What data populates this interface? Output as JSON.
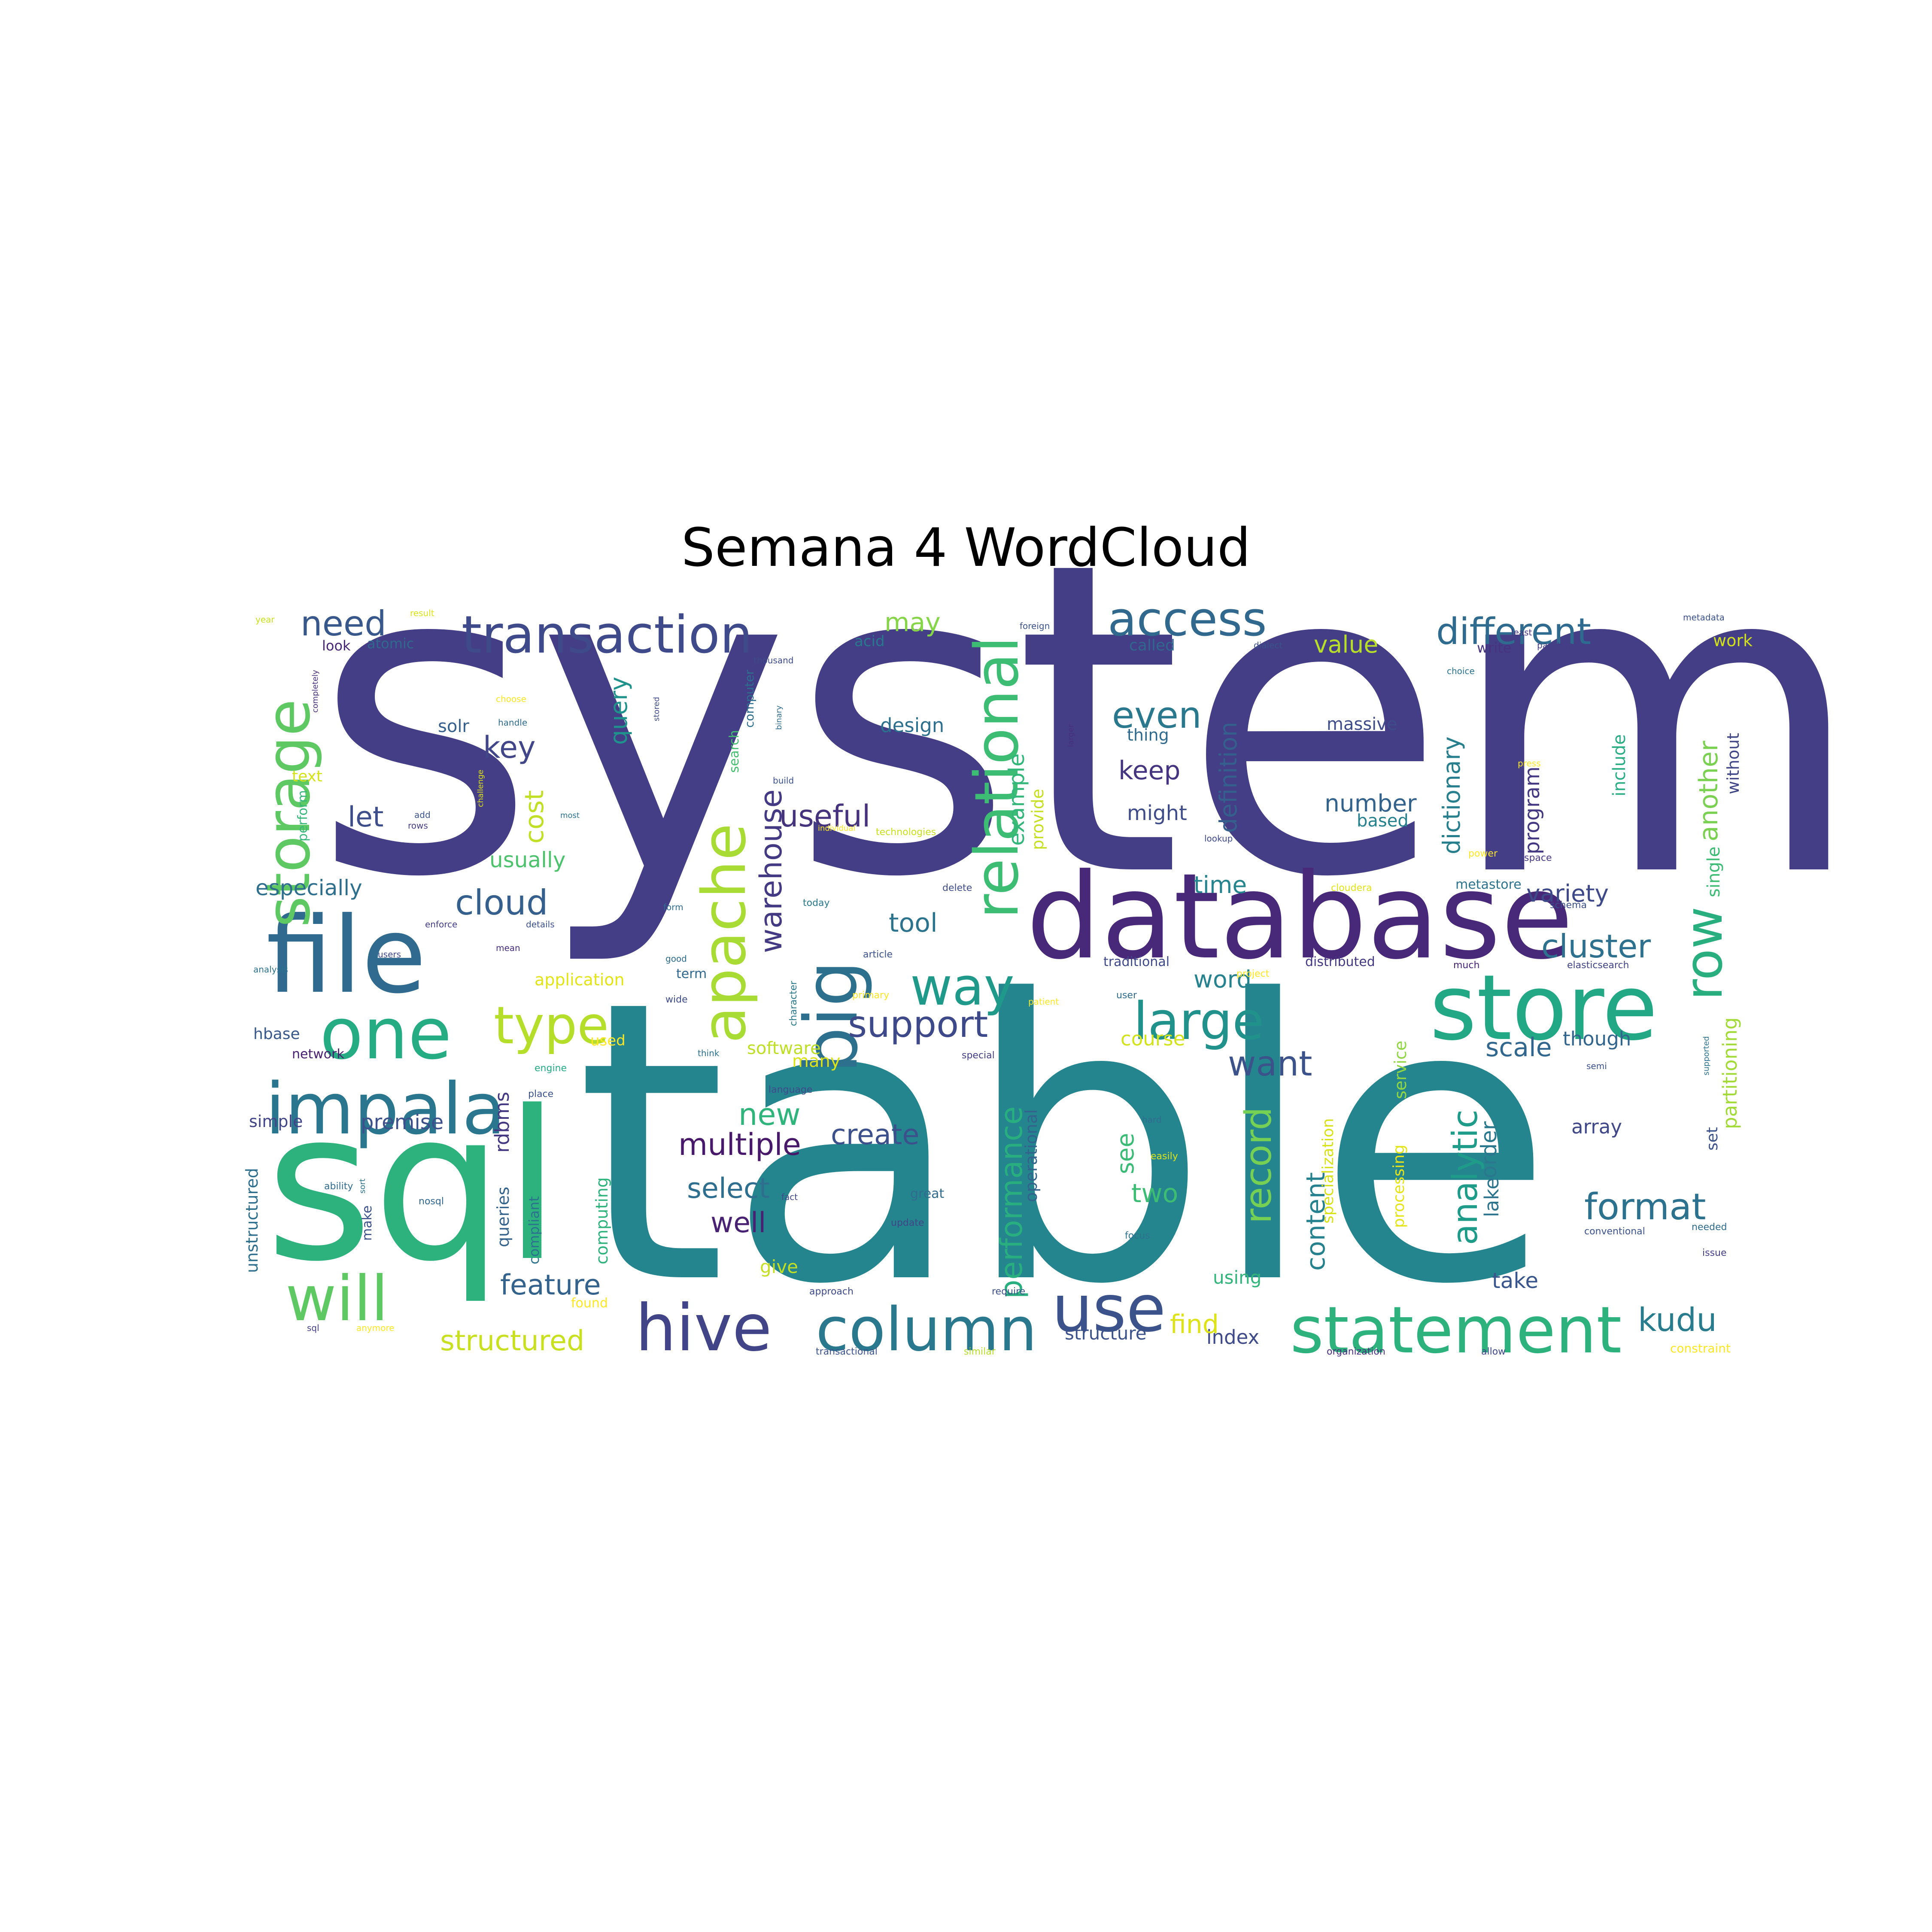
{
  "chart_data": {
    "type": "wordcloud",
    "title": "Semana 4 WordCloud",
    "background": "#ffffff",
    "colormap": "viridis",
    "words": [
      {
        "text": "system",
        "weight": 1.0,
        "color": "#433e85"
      },
      {
        "text": "table",
        "weight": 0.97,
        "color": "#25858e"
      },
      {
        "text": "sql",
        "weight": 0.55,
        "color": "#2db27d"
      },
      {
        "text": "database",
        "weight": 0.38,
        "color": "#482878"
      },
      {
        "text": "file",
        "weight": 0.33,
        "color": "#306a8e"
      },
      {
        "text": "store",
        "weight": 0.3,
        "color": "#22a884"
      },
      {
        "text": "statement",
        "weight": 0.27,
        "color": "#2db27d"
      },
      {
        "text": "hive",
        "weight": 0.26,
        "color": "#414487"
      },
      {
        "text": "column",
        "weight": 0.26,
        "color": "#2a788e"
      },
      {
        "text": "big",
        "weight": 0.27,
        "color": "#2d708e"
      },
      {
        "text": "one",
        "weight": 0.27,
        "color": "#25ac82"
      },
      {
        "text": "impala",
        "weight": 0.26,
        "color": "#2a768e"
      },
      {
        "text": "relational",
        "weight": 0.25,
        "color": "#3dbc74"
      },
      {
        "text": "use",
        "weight": 0.24,
        "color": "#3b528b"
      },
      {
        "text": "storage",
        "weight": 0.23,
        "color": "#5ec962"
      },
      {
        "text": "apache",
        "weight": 0.24,
        "color": "#a8db34"
      },
      {
        "text": "will",
        "weight": 0.23,
        "color": "#5ec962"
      },
      {
        "text": "transaction",
        "weight": 0.2,
        "color": "#3e4a89"
      },
      {
        "text": "way",
        "weight": 0.21,
        "color": "#1f9a8a"
      },
      {
        "text": "access",
        "weight": 0.19,
        "color": "#31688e"
      },
      {
        "text": "large",
        "weight": 0.19,
        "color": "#21918c"
      },
      {
        "text": "type",
        "weight": 0.2,
        "color": "#b5de2b"
      },
      {
        "text": "row",
        "weight": 0.19,
        "color": "#29af7f"
      },
      {
        "text": "analytic",
        "weight": 0.16,
        "color": "#1e9c89"
      },
      {
        "text": "record",
        "weight": 0.15,
        "color": "#75d054"
      },
      {
        "text": "format",
        "weight": 0.15,
        "color": "#2c728e"
      },
      {
        "text": "support",
        "weight": 0.15,
        "color": "#3e4989"
      },
      {
        "text": "different",
        "weight": 0.15,
        "color": "#2f6b8e"
      },
      {
        "text": "cloud",
        "weight": 0.14,
        "color": "#35608d"
      },
      {
        "text": "cluster",
        "weight": 0.13,
        "color": "#2d718e"
      },
      {
        "text": "kudu",
        "weight": 0.13,
        "color": "#287c8e"
      },
      {
        "text": "need",
        "weight": 0.13,
        "color": "#38588c"
      },
      {
        "text": "even",
        "weight": 0.13,
        "color": "#2a788e"
      },
      {
        "text": "warehouse",
        "weight": 0.12,
        "color": "#443983"
      },
      {
        "text": "multiple",
        "weight": 0.12,
        "color": "#48186a"
      },
      {
        "text": "useful",
        "weight": 0.12,
        "color": "#46337e"
      },
      {
        "text": "want",
        "weight": 0.13,
        "color": "#3b528b"
      },
      {
        "text": "performance",
        "weight": 0.12,
        "color": "#29af7f"
      },
      {
        "text": "structured",
        "weight": 0.11,
        "color": "#c8e020"
      },
      {
        "text": "feature",
        "weight": 0.11,
        "color": "#33638d"
      },
      {
        "text": "select",
        "weight": 0.11,
        "color": "#2e6e8e"
      },
      {
        "text": "new",
        "weight": 0.11,
        "color": "#2fb47c"
      },
      {
        "text": "create",
        "weight": 0.11,
        "color": "#3c508b"
      },
      {
        "text": "well",
        "weight": 0.11,
        "color": "#482173"
      },
      {
        "text": "key",
        "weight": 0.11,
        "color": "#404688"
      },
      {
        "text": "let",
        "weight": 0.1,
        "color": "#3d4e8a"
      },
      {
        "text": "cost",
        "weight": 0.1,
        "color": "#c0df25"
      },
      {
        "text": "query",
        "weight": 0.09,
        "color": "#20928c"
      },
      {
        "text": "content",
        "weight": 0.1,
        "color": "#26818e"
      },
      {
        "text": "another",
        "weight": 0.1,
        "color": "#7ad151"
      },
      {
        "text": "definition",
        "weight": 0.09,
        "color": "#355f8d"
      },
      {
        "text": "dictionary",
        "weight": 0.09,
        "color": "#277f8e"
      },
      {
        "text": "variety",
        "weight": 0.09,
        "color": "#3e4989"
      },
      {
        "text": "tool",
        "weight": 0.09,
        "color": "#2c738e"
      },
      {
        "text": "time",
        "weight": 0.09,
        "color": "#25848e"
      },
      {
        "text": "word",
        "weight": 0.09,
        "color": "#26828e"
      },
      {
        "text": "scale",
        "weight": 0.09,
        "color": "#31678e"
      },
      {
        "text": "number",
        "weight": 0.09,
        "color": "#33638d"
      },
      {
        "text": "example",
        "weight": 0.08,
        "color": "#32b67a"
      },
      {
        "text": "keep",
        "weight": 0.08,
        "color": "#453581"
      },
      {
        "text": "usually",
        "weight": 0.08,
        "color": "#4cc26c"
      },
      {
        "text": "may",
        "weight": 0.08,
        "color": "#86d549"
      },
      {
        "text": "value",
        "weight": 0.08,
        "color": "#b8de29"
      },
      {
        "text": "two",
        "weight": 0.08,
        "color": "#3dbc74"
      },
      {
        "text": "see",
        "weight": 0.08,
        "color": "#3bbb75"
      },
      {
        "text": "order",
        "weight": 0.08,
        "color": "#2a788e"
      },
      {
        "text": "lake",
        "weight": 0.08,
        "color": "#2c738e"
      },
      {
        "text": "find",
        "weight": 0.08,
        "color": "#dde318"
      },
      {
        "text": "index",
        "weight": 0.07,
        "color": "#3e4a89"
      },
      {
        "text": "take",
        "weight": 0.07,
        "color": "#39568c"
      },
      {
        "text": "partitioning",
        "weight": 0.07,
        "color": "#a2da37"
      },
      {
        "text": "program",
        "weight": 0.07,
        "color": "#453882"
      },
      {
        "text": "especially",
        "weight": 0.07,
        "color": "#2e6f8e"
      },
      {
        "text": "software",
        "weight": 0.07,
        "color": "#bddf26"
      },
      {
        "text": "might",
        "weight": 0.07,
        "color": "#3e4c8a"
      },
      {
        "text": "design",
        "weight": 0.06,
        "color": "#2d708e"
      },
      {
        "text": "though",
        "weight": 0.06,
        "color": "#32658e"
      },
      {
        "text": "premise",
        "weight": 0.06,
        "color": "#3c508b"
      },
      {
        "text": "many",
        "weight": 0.06,
        "color": "#dae319"
      },
      {
        "text": "based",
        "weight": 0.06,
        "color": "#26818e"
      },
      {
        "text": "array",
        "weight": 0.06,
        "color": "#3f4788"
      },
      {
        "text": "course",
        "weight": 0.06,
        "color": "#d2e21b"
      },
      {
        "text": "rdbms",
        "weight": 0.06,
        "color": "#453882"
      },
      {
        "text": "using",
        "weight": 0.06,
        "color": "#31b57b"
      },
      {
        "text": "give",
        "weight": 0.06,
        "color": "#c2df23"
      },
      {
        "text": "structure",
        "weight": 0.06,
        "color": "#3b528b"
      },
      {
        "text": "computing",
        "weight": 0.05,
        "color": "#2eb37c"
      },
      {
        "text": "specialization",
        "weight": 0.05,
        "color": "#d8e219"
      },
      {
        "text": "processing",
        "weight": 0.05,
        "color": "#e5e419"
      },
      {
        "text": "service",
        "weight": 0.05,
        "color": "#90d743"
      },
      {
        "text": "queries",
        "weight": 0.05,
        "color": "#33638d"
      },
      {
        "text": "compliant",
        "weight": 0.05,
        "color": "#2c728e"
      },
      {
        "text": "unstructured",
        "weight": 0.05,
        "color": "#2e6f8e"
      },
      {
        "text": "operational",
        "weight": 0.05,
        "color": "#33628d"
      },
      {
        "text": "include",
        "weight": 0.05,
        "color": "#28ae80"
      },
      {
        "text": "single",
        "weight": 0.05,
        "color": "#3dbc74"
      },
      {
        "text": "without",
        "weight": 0.05,
        "color": "#404688"
      },
      {
        "text": "solr",
        "weight": 0.05,
        "color": "#355f8d"
      },
      {
        "text": "simple",
        "weight": 0.05,
        "color": "#414487"
      },
      {
        "text": "hbase",
        "weight": 0.04,
        "color": "#38588c"
      },
      {
        "text": "massive",
        "weight": 0.05,
        "color": "#3e4c8a"
      },
      {
        "text": "thing",
        "weight": 0.05,
        "color": "#306a8e"
      },
      {
        "text": "provide",
        "weight": 0.05,
        "color": "#c5e021"
      },
      {
        "text": "application",
        "weight": 0.05,
        "color": "#e2e418"
      },
      {
        "text": "work",
        "weight": 0.04,
        "color": "#d0e11c"
      },
      {
        "text": "text",
        "weight": 0.04,
        "color": "#d5e21a"
      },
      {
        "text": "look",
        "weight": 0.04,
        "color": "#482677"
      },
      {
        "text": "atomic",
        "weight": 0.04,
        "color": "#31688e"
      },
      {
        "text": "acid",
        "weight": 0.04,
        "color": "#2a788e"
      },
      {
        "text": "called",
        "weight": 0.04,
        "color": "#31668e"
      },
      {
        "text": "write",
        "weight": 0.04,
        "color": "#46327e"
      },
      {
        "text": "traditional",
        "weight": 0.04,
        "color": "#3e4989"
      },
      {
        "text": "distributed",
        "weight": 0.04,
        "color": "#453882"
      },
      {
        "text": "metastore",
        "weight": 0.04,
        "color": "#2c738e"
      },
      {
        "text": "used",
        "weight": 0.04,
        "color": "#fde725"
      },
      {
        "text": "term",
        "weight": 0.04,
        "color": "#31688e"
      },
      {
        "text": "network",
        "weight": 0.04,
        "color": "#481f70"
      },
      {
        "text": "search",
        "weight": 0.04,
        "color": "#44bf70"
      },
      {
        "text": "computer",
        "weight": 0.04,
        "color": "#2e6e8e"
      },
      {
        "text": "make",
        "weight": 0.04,
        "color": "#3b518b"
      },
      {
        "text": "perform",
        "weight": 0.04,
        "color": "#35b779"
      },
      {
        "text": "great",
        "weight": 0.04,
        "color": "#2f6c8e"
      },
      {
        "text": "found",
        "weight": 0.03,
        "color": "#fde725"
      },
      {
        "text": "approach",
        "weight": 0.03,
        "color": "#3e4a89"
      },
      {
        "text": "transactional",
        "weight": 0.03,
        "color": "#3b528b"
      },
      {
        "text": "similar",
        "weight": 0.03,
        "color": "#b5de2b"
      },
      {
        "text": "organization",
        "weight": 0.03,
        "color": "#472f7d"
      },
      {
        "text": "allow",
        "weight": 0.03,
        "color": "#3e4989"
      },
      {
        "text": "constraint",
        "weight": 0.03,
        "color": "#fde725"
      },
      {
        "text": "elasticsearch",
        "weight": 0.03,
        "color": "#414487"
      },
      {
        "text": "much",
        "weight": 0.03,
        "color": "#482475"
      },
      {
        "text": "analysis",
        "weight": 0.03,
        "color": "#2c738e"
      },
      {
        "text": "wide",
        "weight": 0.03,
        "color": "#3e4c8a"
      },
      {
        "text": "character",
        "weight": 0.03,
        "color": "#2a788e"
      },
      {
        "text": "primary",
        "weight": 0.03,
        "color": "#fde725"
      },
      {
        "text": "special",
        "weight": 0.03,
        "color": "#433e85"
      },
      {
        "text": "language",
        "weight": 0.03,
        "color": "#3e4a89"
      },
      {
        "text": "engine",
        "weight": 0.03,
        "color": "#25ab82"
      },
      {
        "text": "place",
        "weight": 0.03,
        "color": "#3b528b"
      },
      {
        "text": "ability",
        "weight": 0.03,
        "color": "#2f6c8e"
      },
      {
        "text": "nosql",
        "weight": 0.03,
        "color": "#31668e"
      },
      {
        "text": "focus",
        "weight": 0.03,
        "color": "#2c728e"
      },
      {
        "text": "easily",
        "weight": 0.03,
        "color": "#dde318"
      },
      {
        "text": "update",
        "weight": 0.03,
        "color": "#414487"
      },
      {
        "text": "conventional",
        "weight": 0.03,
        "color": "#3b528b"
      },
      {
        "text": "needed",
        "weight": 0.03,
        "color": "#2f6c8e"
      },
      {
        "text": "issue",
        "weight": 0.03,
        "color": "#433e85"
      },
      {
        "text": "schema",
        "weight": 0.03,
        "color": "#3b518b"
      },
      {
        "text": "space",
        "weight": 0.03,
        "color": "#453781"
      },
      {
        "text": "power",
        "weight": 0.03,
        "color": "#fde725"
      },
      {
        "text": "cloudera",
        "weight": 0.03,
        "color": "#e2e418"
      },
      {
        "text": "delete",
        "weight": 0.03,
        "color": "#3e4c8a"
      },
      {
        "text": "article",
        "weight": 0.03,
        "color": "#3b528b"
      },
      {
        "text": "today",
        "weight": 0.03,
        "color": "#2a788e"
      },
      {
        "text": "technologies",
        "weight": 0.03,
        "color": "#c8e020"
      },
      {
        "text": "require",
        "weight": 0.03,
        "color": "#3b528b"
      },
      {
        "text": "user",
        "weight": 0.03,
        "color": "#2f6c8e"
      },
      {
        "text": "project",
        "weight": 0.03,
        "color": "#fde725"
      },
      {
        "text": "metadata",
        "weight": 0.02,
        "color": "#3b528b"
      },
      {
        "text": "partition",
        "weight": 0.02,
        "color": "#433e85"
      },
      {
        "text": "least",
        "weight": 0.02,
        "color": "#46327e"
      },
      {
        "text": "dialect",
        "weight": 0.02,
        "color": "#3b528b"
      },
      {
        "text": "choice",
        "weight": 0.02,
        "color": "#2c728e"
      },
      {
        "text": "thousand",
        "weight": 0.02,
        "color": "#3e4a89"
      },
      {
        "text": "result",
        "weight": 0.02,
        "color": "#dde318"
      },
      {
        "text": "year",
        "weight": 0.02,
        "color": "#c8e020"
      },
      {
        "text": "foreign",
        "weight": 0.02,
        "color": "#3b528b"
      },
      {
        "text": "choose",
        "weight": 0.02,
        "color": "#fde725"
      },
      {
        "text": "handle",
        "weight": 0.02,
        "color": "#2f6c8e"
      },
      {
        "text": "completely",
        "weight": 0.02,
        "color": "#472f7d"
      },
      {
        "text": "challenge",
        "weight": 0.02,
        "color": "#dde318"
      },
      {
        "text": "binary",
        "weight": 0.02,
        "color": "#2f6c8e"
      },
      {
        "text": "build",
        "weight": 0.02,
        "color": "#3b528b"
      },
      {
        "text": "stored",
        "weight": 0.02,
        "color": "#3e4a89"
      },
      {
        "text": "individual",
        "weight": 0.02,
        "color": "#fde725"
      },
      {
        "text": "most",
        "weight": 0.02,
        "color": "#2c728e"
      },
      {
        "text": "add",
        "weight": 0.02,
        "color": "#3b528b"
      },
      {
        "text": "rows",
        "weight": 0.02,
        "color": "#433e85"
      },
      {
        "text": "form",
        "weight": 0.02,
        "color": "#2f6c8e"
      },
      {
        "text": "lookup",
        "weight": 0.02,
        "color": "#3e4a89"
      },
      {
        "text": "larger",
        "weight": 0.02,
        "color": "#472f7d"
      },
      {
        "text": "press",
        "weight": 0.02,
        "color": "#fde725"
      },
      {
        "text": "supported",
        "weight": 0.02,
        "color": "#2c728e"
      },
      {
        "text": "details",
        "weight": 0.02,
        "color": "#3b528b"
      },
      {
        "text": "enforce",
        "weight": 0.02,
        "color": "#433e85"
      },
      {
        "text": "good",
        "weight": 0.02,
        "color": "#2f6c8e"
      },
      {
        "text": "users",
        "weight": 0.02,
        "color": "#3e4a89"
      },
      {
        "text": "mean",
        "weight": 0.02,
        "color": "#472f7d"
      },
      {
        "text": "think",
        "weight": 0.02,
        "color": "#2c728e"
      },
      {
        "text": "patient",
        "weight": 0.02,
        "color": "#fde725"
      },
      {
        "text": "semi",
        "weight": 0.02,
        "color": "#3b528b"
      },
      {
        "text": "hard",
        "weight": 0.02,
        "color": "#2f6c8e"
      },
      {
        "text": "fact",
        "weight": 0.02,
        "color": "#3e4a89"
      },
      {
        "text": "sort",
        "weight": 0.02,
        "color": "#2c728e"
      },
      {
        "text": "sql2",
        "weight": 0.02,
        "color": "#433e85"
      },
      {
        "text": "anymore",
        "weight": 0.02,
        "color": "#fde725"
      },
      {
        "text": "set",
        "weight": 0.03,
        "color": "#3b528b"
      }
    ]
  }
}
